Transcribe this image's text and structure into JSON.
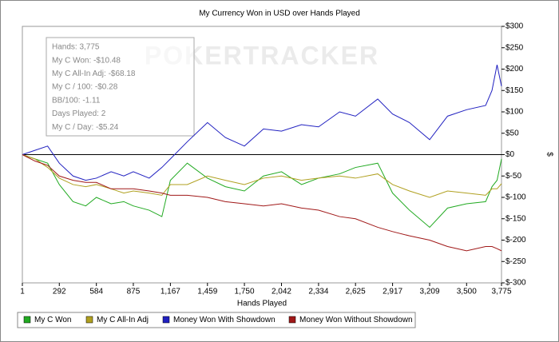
{
  "chart_data": {
    "type": "line",
    "title": "My Currency Won in USD over Hands Played",
    "x_label": "Hands Played",
    "y_label": "$",
    "watermark": "POKERTRACKER",
    "stats": [
      "Hands: 3,775",
      "My C Won: -$10.48",
      "My C All-In Adj: -$68.18",
      "My C / 100: -$0.28",
      "BB/100: -1.11",
      "Days Played: 2",
      "My C / Day: -$5.24"
    ],
    "x": [
      1,
      100,
      200,
      292,
      400,
      500,
      584,
      700,
      800,
      875,
      1000,
      1100,
      1167,
      1300,
      1459,
      1600,
      1750,
      1900,
      2042,
      2200,
      2334,
      2500,
      2625,
      2800,
      2917,
      3050,
      3209,
      3350,
      3500,
      3650,
      3700,
      3740,
      3775
    ],
    "series": [
      {
        "name": "My C Won",
        "color": "#22aa22",
        "values": [
          0,
          -10,
          -20,
          -70,
          -110,
          -120,
          -100,
          -115,
          -110,
          -120,
          -130,
          -145,
          -60,
          -20,
          -55,
          -75,
          -85,
          -50,
          -40,
          -70,
          -55,
          -45,
          -30,
          -20,
          -90,
          -130,
          -170,
          -125,
          -115,
          -110,
          -75,
          -60,
          -10
        ]
      },
      {
        "name": "My C All-In Adj",
        "color": "#b0a020",
        "values": [
          0,
          -10,
          -30,
          -55,
          -70,
          -75,
          -70,
          -80,
          -90,
          -85,
          -90,
          -95,
          -70,
          -70,
          -50,
          -60,
          -70,
          -55,
          -50,
          -60,
          -55,
          -50,
          -55,
          -45,
          -70,
          -85,
          -100,
          -85,
          -90,
          -95,
          -80,
          -80,
          -68
        ]
      },
      {
        "name": "Money Won With Showdown",
        "color": "#2020c0",
        "values": [
          0,
          10,
          20,
          -20,
          -50,
          -60,
          -55,
          -40,
          -50,
          -40,
          -55,
          -30,
          -10,
          30,
          75,
          40,
          20,
          60,
          55,
          70,
          65,
          100,
          90,
          130,
          95,
          75,
          35,
          90,
          105,
          115,
          150,
          210,
          160
        ]
      },
      {
        "name": "Money Won Without Showdown",
        "color": "#a01818",
        "values": [
          0,
          -15,
          -25,
          -50,
          -60,
          -65,
          -65,
          -80,
          -80,
          -80,
          -85,
          -90,
          -95,
          -95,
          -100,
          -110,
          -115,
          -120,
          -115,
          -125,
          -130,
          -145,
          -150,
          -170,
          -180,
          -190,
          -200,
          -215,
          -225,
          -215,
          -215,
          -220,
          -225
        ]
      }
    ],
    "xlim": [
      1,
      3775
    ],
    "xticks": [
      1,
      292,
      584,
      875,
      {
        "value": 1167,
        "label": "1,167"
      },
      {
        "value": 1459,
        "label": "1,459"
      },
      {
        "value": 1750,
        "label": "1,750"
      },
      {
        "value": 2042,
        "label": "2,042"
      },
      {
        "value": 2334,
        "label": "2,334"
      },
      {
        "value": 2625,
        "label": "2,625"
      },
      {
        "value": 2917,
        "label": "2,917"
      },
      {
        "value": 3209,
        "label": "3,209"
      },
      {
        "value": 3500,
        "label": "3,500"
      },
      {
        "value": 3775,
        "label": "3,775"
      }
    ],
    "ylim": [
      -300,
      300
    ],
    "yticks": [
      {
        "value": 300,
        "label": "$300"
      },
      {
        "value": 250,
        "label": "$250"
      },
      {
        "value": 200,
        "label": "$200"
      },
      {
        "value": 150,
        "label": "$150"
      },
      {
        "value": 100,
        "label": "$100"
      },
      {
        "value": 50,
        "label": "$50"
      },
      {
        "value": 0,
        "label": "$0"
      },
      {
        "value": -50,
        "label": "$-50"
      },
      {
        "value": -100,
        "label": "$-100"
      },
      {
        "value": -150,
        "label": "$-150"
      },
      {
        "value": -200,
        "label": "$-200"
      },
      {
        "value": -250,
        "label": "$-250"
      },
      {
        "value": -300,
        "label": "$-300"
      }
    ],
    "y_axis_side": "right",
    "legend": "bottom"
  }
}
